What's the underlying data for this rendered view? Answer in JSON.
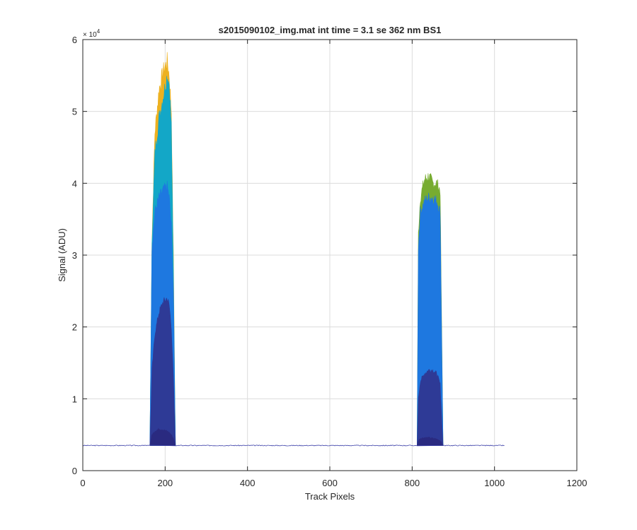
{
  "chart_data": {
    "type": "area",
    "title": "s2015090102_img.mat int time = 3.1 se  362 nm BS1",
    "xlabel": "Track Pixels",
    "ylabel": "Signal (ADU)",
    "y_exponent_label": "× 10",
    "y_exponent_power": "4",
    "xlim": [
      0,
      1200
    ],
    "ylim": [
      0,
      60000
    ],
    "x_ticks": [
      0,
      200,
      400,
      600,
      800,
      1000,
      1200
    ],
    "x_tick_labels": [
      "0",
      "200",
      "400",
      "600",
      "800",
      "1000",
      "1200"
    ],
    "y_ticks": [
      0,
      10000,
      20000,
      30000,
      40000,
      50000,
      60000
    ],
    "y_tick_labels": [
      "0",
      "1",
      "2",
      "3",
      "4",
      "5",
      "6"
    ],
    "grid": true,
    "baseline": 3500,
    "x_range_data": [
      0,
      1024
    ],
    "peak_regions": [
      [
        163,
        225
      ],
      [
        812,
        875
      ]
    ],
    "series": [
      {
        "color": "#EDB120",
        "peaks": [
          {
            "x": [
              163,
              168,
              175,
              185,
              195,
              205,
              210,
              215,
              220,
              225
            ],
            "y": [
              3500,
              32000,
              47000,
              53000,
              55500,
              57000,
              55000,
              50000,
              30000,
              3500
            ]
          }
        ]
      },
      {
        "color": "#77AC30",
        "peaks": [
          {
            "x": [
              812,
              815,
              820,
              830,
              840,
              850,
              860,
              868,
              875
            ],
            "y": [
              3500,
              33000,
              38000,
              40500,
              41000,
              40000,
              40000,
              39000,
              3500
            ]
          }
        ]
      },
      {
        "color": "#13A7C7",
        "peaks": [
          {
            "x": [
              163,
              168,
              175,
              185,
              195,
              205,
              210,
              215,
              220,
              225
            ],
            "y": [
              3500,
              32000,
              44000,
              49000,
              52000,
              55000,
              54000,
              48000,
              28000,
              3500
            ]
          }
        ]
      },
      {
        "color": "#1E78E0",
        "peaks": [
          {
            "x": [
              163,
              168,
              175,
              185,
              195,
              205,
              210,
              215,
              220,
              225
            ],
            "y": [
              3500,
              31000,
              36000,
              38000,
              39000,
              39500,
              38000,
              34000,
              25000,
              3500
            ]
          },
          {
            "x": [
              812,
              815,
              820,
              830,
              840,
              850,
              860,
              868,
              875
            ],
            "y": [
              3500,
              31000,
              36000,
              37500,
              38000,
              38000,
              37500,
              36000,
              3500
            ]
          }
        ]
      },
      {
        "color": "#2E3A96",
        "peaks": [
          {
            "x": [
              163,
              168,
              175,
              185,
              195,
              205,
              210,
              215,
              220,
              225
            ],
            "y": [
              3500,
              14000,
              19000,
              22000,
              23500,
              24000,
              23000,
              20000,
              13000,
              3500
            ]
          },
          {
            "x": [
              812,
              815,
              820,
              830,
              840,
              850,
              860,
              868,
              875
            ],
            "y": [
              3500,
              10000,
              12500,
              13500,
              14000,
              14000,
              13500,
              12000,
              3500
            ]
          }
        ]
      },
      {
        "color": "#2A2A80",
        "peaks": [
          {
            "x": [
              163,
              168,
              175,
              185,
              195,
              205,
              210,
              215,
              220,
              225
            ],
            "y": [
              3500,
              5000,
              5500,
              5800,
              5700,
              5500,
              5300,
              5000,
              4500,
              3500
            ]
          },
          {
            "x": [
              812,
              815,
              820,
              830,
              840,
              850,
              860,
              868,
              875
            ],
            "y": [
              3500,
              4200,
              4500,
              4600,
              4600,
              4500,
              4400,
              4200,
              3500
            ]
          }
        ]
      }
    ]
  }
}
